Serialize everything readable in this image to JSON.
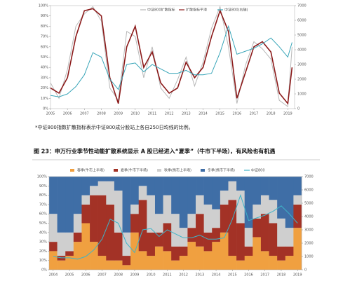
{
  "footnote": "*中证800指数扩散指标表示中证800成分股站上各自250日均线的比例。",
  "caption": "图 23：申万行业季节性动能扩散系统显示 A 股已经进入“夏季”（牛市下半场），有风险也有机遇",
  "chart_data": [
    {
      "type": "line",
      "x": [
        2005,
        2005.5,
        2006,
        2006.5,
        2007,
        2007.5,
        2008,
        2008.5,
        2009,
        2009.5,
        2010,
        2010.5,
        2011,
        2011.5,
        2012,
        2012.5,
        2013,
        2013.5,
        2014,
        2014.5,
        2015,
        2015.5,
        2016,
        2016.5,
        2017,
        2017.5,
        2018,
        2018.5,
        2019,
        2019.25
      ],
      "series": [
        {
          "name": "中证800扩散指标",
          "color": "#b8b8b8",
          "values": [
            25,
            10,
            38,
            80,
            92,
            99,
            85,
            20,
            8,
            75,
            70,
            30,
            60,
            20,
            10,
            28,
            50,
            22,
            45,
            78,
            99,
            60,
            5,
            42,
            65,
            58,
            48,
            8,
            2,
            60
          ]
        },
        {
          "name": "扩散指标平滑",
          "color": "#8b1a1a",
          "values": [
            20,
            15,
            30,
            70,
            95,
            97,
            90,
            30,
            5,
            60,
            80,
            40,
            55,
            25,
            15,
            20,
            45,
            30,
            40,
            70,
            95,
            75,
            10,
            35,
            60,
            65,
            55,
            15,
            5,
            40
          ]
        },
        {
          "name": "中证800(右轴)",
          "color": "#3aa6b9",
          "axis": "y2",
          "values": [
            900,
            800,
            1000,
            1500,
            2300,
            3800,
            3500,
            2000,
            1300,
            3000,
            3100,
            2500,
            3000,
            2700,
            2400,
            2400,
            2600,
            2300,
            2300,
            2400,
            3800,
            5600,
            3700,
            3900,
            4100,
            4400,
            4800,
            4200,
            3500,
            4500
          ]
        }
      ],
      "xlim": [
        2005,
        2019.4
      ],
      "xticks": [
        2005,
        2006,
        2007,
        2008,
        2009,
        2010,
        2011,
        2012,
        2013,
        2014,
        2015,
        2016,
        2017,
        2018,
        2019
      ],
      "ylim": [
        0,
        100
      ],
      "yticks": [
        {
          "value": 0,
          "label": "0%"
        },
        {
          "value": 10,
          "label": "10%"
        },
        {
          "value": 20,
          "label": "20%"
        },
        {
          "value": 30,
          "label": "30%"
        },
        {
          "value": 40,
          "label": "40%"
        },
        {
          "value": 50,
          "label": "50%"
        },
        {
          "value": 60,
          "label": "60%"
        },
        {
          "value": 70,
          "label": "70%"
        },
        {
          "value": 80,
          "label": "80%"
        },
        {
          "value": 90,
          "label": "90%"
        },
        {
          "value": 100,
          "label": "100%"
        }
      ],
      "y2lim": [
        0,
        7000
      ],
      "y2ticks": [
        0,
        1000,
        2000,
        3000,
        4000,
        5000,
        6000,
        7000
      ]
    },
    {
      "type": "stacked_bar",
      "x": [
        2004,
        2004.5,
        2005,
        2005.5,
        2006,
        2006.5,
        2007,
        2007.5,
        2008,
        2008.5,
        2009,
        2009.5,
        2010,
        2010.5,
        2011,
        2011.5,
        2012,
        2012.5,
        2013,
        2013.5,
        2014,
        2014.5,
        2015,
        2015.5,
        2016,
        2016.5,
        2017,
        2017.5,
        2018,
        2018.5,
        2019
      ],
      "series": [
        {
          "name": "春季(牛市上半场)",
          "color": "#f0a040",
          "values": [
            20,
            10,
            15,
            30,
            50,
            30,
            15,
            10,
            10,
            5,
            40,
            20,
            15,
            25,
            20,
            10,
            15,
            30,
            25,
            20,
            30,
            40,
            15,
            10,
            15,
            35,
            20,
            15,
            10,
            15,
            45
          ]
        },
        {
          "name": "夏季(牛市下半场)",
          "color": "#a33226",
          "values": [
            10,
            5,
            5,
            10,
            20,
            50,
            65,
            60,
            30,
            10,
            20,
            55,
            25,
            15,
            30,
            15,
            10,
            15,
            35,
            20,
            15,
            30,
            60,
            40,
            10,
            20,
            40,
            35,
            15,
            10,
            25
          ]
        },
        {
          "name": "秋季(熊市上半场)",
          "color": "#cfcfcf",
          "values": [
            30,
            25,
            20,
            20,
            10,
            10,
            15,
            25,
            45,
            25,
            10,
            15,
            40,
            20,
            30,
            35,
            20,
            15,
            20,
            30,
            20,
            15,
            20,
            35,
            20,
            15,
            20,
            25,
            30,
            20,
            10
          ]
        },
        {
          "name": "冬季(熊市下半场)",
          "color": "#3f6ea6",
          "values": [
            40,
            60,
            60,
            40,
            20,
            10,
            5,
            5,
            15,
            60,
            30,
            10,
            20,
            40,
            20,
            40,
            55,
            40,
            20,
            30,
            35,
            15,
            5,
            15,
            55,
            30,
            20,
            25,
            45,
            55,
            20
          ]
        },
        {
          "name": "中证800",
          "color": "#3fb4c8",
          "axis": "y2",
          "line": true,
          "values": [
            1000,
            900,
            900,
            800,
            1000,
            1500,
            2300,
            3800,
            3500,
            2000,
            1300,
            3000,
            3100,
            2500,
            3000,
            2700,
            2400,
            2400,
            2600,
            2300,
            2300,
            2400,
            3800,
            5600,
            3700,
            3900,
            4100,
            4400,
            4800,
            4200,
            3500
          ]
        }
      ],
      "xlim": [
        2003.75,
        2019.25
      ],
      "xticks": [
        2004,
        2005,
        2006,
        2007,
        2008,
        2009,
        2010,
        2011,
        2012,
        2013,
        2014,
        2015,
        2016,
        2017,
        2018,
        2019
      ],
      "ylim": [
        0,
        100
      ],
      "yticks": [
        {
          "value": 0,
          "label": "0%"
        },
        {
          "value": 10,
          "label": "10%"
        },
        {
          "value": 20,
          "label": "20%"
        },
        {
          "value": 30,
          "label": "30%"
        },
        {
          "value": 40,
          "label": "40%"
        },
        {
          "value": 50,
          "label": "50%"
        },
        {
          "value": 60,
          "label": "60%"
        },
        {
          "value": 70,
          "label": "70%"
        },
        {
          "value": 80,
          "label": "80%"
        },
        {
          "value": 90,
          "label": "90%"
        },
        {
          "value": 100,
          "label": "100%"
        }
      ],
      "y2lim": [
        0,
        7000
      ],
      "y2ticks": [
        0,
        1000,
        2000,
        3000,
        4000,
        5000,
        6000,
        7000
      ]
    }
  ]
}
